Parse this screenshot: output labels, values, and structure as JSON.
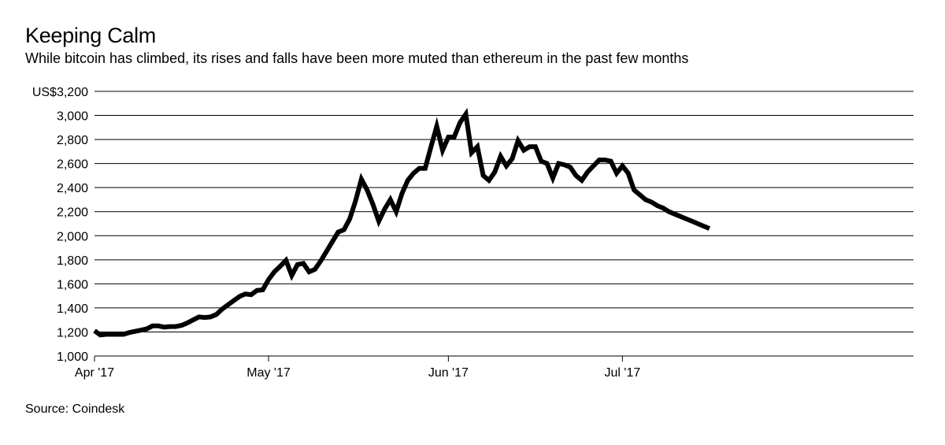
{
  "title": "Keeping Calm",
  "subtitle": "While bitcoin has climbed, its rises and falls have been more muted than ethereum in the past few months",
  "source": "Source: Coindesk",
  "chart_data": {
    "type": "line",
    "xlabel": "",
    "ylabel": "",
    "ylim": [
      1000,
      3200
    ],
    "xlim": [
      "2017-04-01",
      "2017-07-17"
    ],
    "grid": true,
    "y_ticks": [
      1000,
      1200,
      1400,
      1600,
      1800,
      2000,
      2200,
      2400,
      2600,
      2800,
      3000,
      3200
    ],
    "y_tick_labels": [
      "1,000",
      "1,200",
      "1,400",
      "1,600",
      "1,800",
      "2,000",
      "2,200",
      "2,400",
      "2,600",
      "2,800",
      "3,000",
      "US$3,200"
    ],
    "x_ticks": [
      "2017-04-01",
      "2017-05-01",
      "2017-06-01",
      "2017-07-01"
    ],
    "x_tick_labels": [
      "Apr '17",
      "May '17",
      "Jun '17",
      "Jul '17"
    ],
    "series": [
      {
        "color": "#000000",
        "dates": [
          "2017-04-01",
          "2017-04-02",
          "2017-04-03",
          "2017-04-04",
          "2017-04-05",
          "2017-04-06",
          "2017-04-07",
          "2017-04-08",
          "2017-04-09",
          "2017-04-10",
          "2017-04-11",
          "2017-04-12",
          "2017-04-13",
          "2017-04-14",
          "2017-04-15",
          "2017-04-16",
          "2017-04-17",
          "2017-04-18",
          "2017-04-19",
          "2017-04-20",
          "2017-04-21",
          "2017-04-22",
          "2017-04-23",
          "2017-04-24",
          "2017-04-25",
          "2017-04-26",
          "2017-04-27",
          "2017-04-28",
          "2017-04-29",
          "2017-04-30",
          "2017-05-01",
          "2017-05-02",
          "2017-05-03",
          "2017-05-04",
          "2017-05-05",
          "2017-05-06",
          "2017-05-07",
          "2017-05-08",
          "2017-05-09",
          "2017-05-10",
          "2017-05-11",
          "2017-05-12",
          "2017-05-13",
          "2017-05-14",
          "2017-05-15",
          "2017-05-16",
          "2017-05-17",
          "2017-05-18",
          "2017-05-19",
          "2017-05-20",
          "2017-05-21",
          "2017-05-22",
          "2017-05-23",
          "2017-05-24",
          "2017-05-25",
          "2017-05-26",
          "2017-05-27",
          "2017-05-28",
          "2017-05-29",
          "2017-05-30",
          "2017-05-31",
          "2017-06-01",
          "2017-06-02",
          "2017-06-03",
          "2017-06-04",
          "2017-06-05",
          "2017-06-06",
          "2017-06-07",
          "2017-06-08",
          "2017-06-09",
          "2017-06-10",
          "2017-06-11",
          "2017-06-12",
          "2017-06-13",
          "2017-06-14",
          "2017-06-15",
          "2017-06-16",
          "2017-06-17",
          "2017-06-18",
          "2017-06-19",
          "2017-06-20",
          "2017-06-21",
          "2017-06-22",
          "2017-06-23",
          "2017-06-24",
          "2017-06-25",
          "2017-06-26",
          "2017-06-27",
          "2017-06-28",
          "2017-06-29",
          "2017-06-30",
          "2017-07-01",
          "2017-07-02",
          "2017-07-03",
          "2017-07-04",
          "2017-07-05",
          "2017-07-06",
          "2017-07-07",
          "2017-07-08",
          "2017-07-09",
          "2017-07-10",
          "2017-07-11",
          "2017-07-12",
          "2017-07-13",
          "2017-07-14",
          "2017-07-15",
          "2017-07-16"
        ],
        "values": [
          1210,
          1175,
          1180,
          1180,
          1180,
          1180,
          1195,
          1205,
          1215,
          1225,
          1250,
          1250,
          1240,
          1245,
          1245,
          1255,
          1275,
          1300,
          1325,
          1320,
          1325,
          1345,
          1390,
          1425,
          1460,
          1495,
          1515,
          1510,
          1545,
          1550,
          1635,
          1700,
          1745,
          1795,
          1670,
          1760,
          1770,
          1700,
          1720,
          1790,
          1870,
          1950,
          2030,
          2050,
          2140,
          2290,
          2470,
          2380,
          2260,
          2120,
          2220,
          2300,
          2200,
          2350,
          2460,
          2520,
          2560,
          2560,
          2740,
          2910,
          2710,
          2820,
          2820,
          2940,
          3010,
          2690,
          2740,
          2500,
          2460,
          2530,
          2660,
          2580,
          2640,
          2790,
          2710,
          2740,
          2740,
          2620,
          2600,
          2480,
          2600,
          2590,
          2570,
          2500,
          2460,
          2530,
          2580,
          2630,
          2630,
          2620,
          2520,
          2580,
          2520,
          2380,
          2340,
          2300,
          2280,
          2250,
          2230,
          2200,
          2180,
          2160,
          2140,
          2120,
          2100,
          2080,
          2060
        ]
      }
    ]
  }
}
